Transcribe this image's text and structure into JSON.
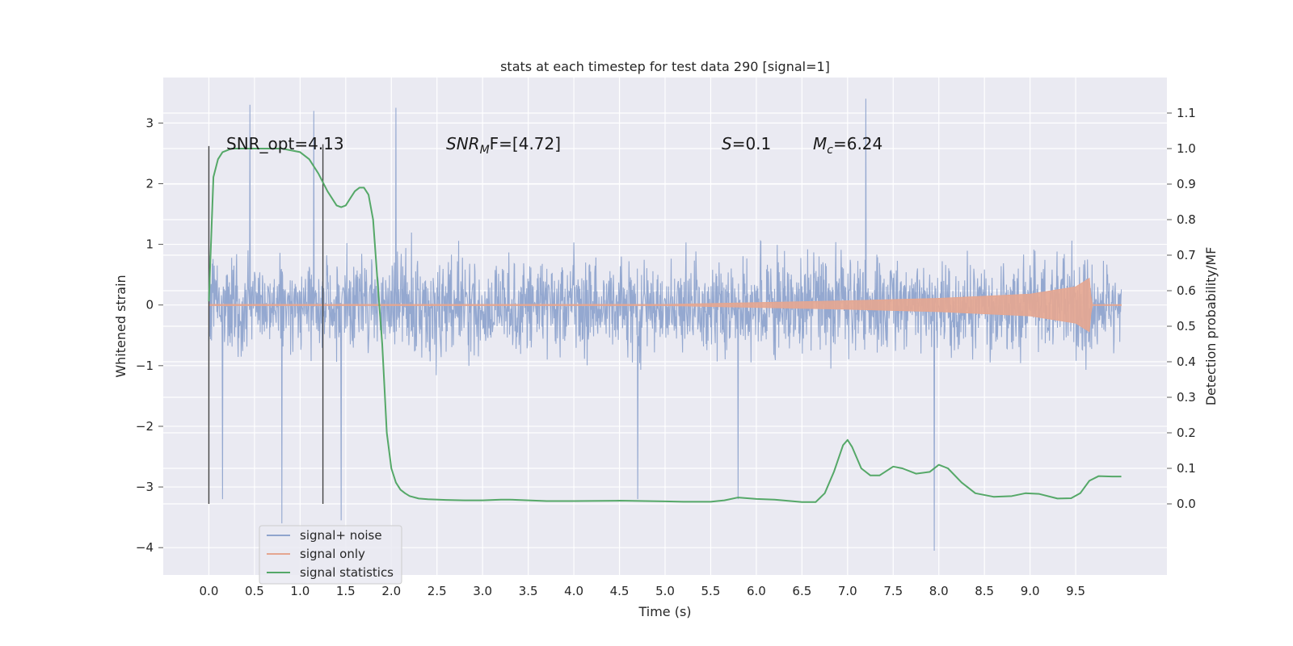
{
  "chart_data": {
    "type": "line",
    "title": "stats at each timestep for test data 290 [signal=1]",
    "xlabel": "Time (s)",
    "ylabel_left": "Whitened strain",
    "ylabel_right": "Detection probability/MF",
    "xlim": [
      -0.5,
      10.5
    ],
    "ylim_left": [
      -4.45,
      3.75
    ],
    "ylim_right": [
      -0.2,
      1.2
    ],
    "x_ticks": [
      "0.0",
      "0.5",
      "1.0",
      "1.5",
      "2.0",
      "2.5",
      "3.0",
      "3.5",
      "4.0",
      "4.5",
      "5.0",
      "5.5",
      "6.0",
      "6.5",
      "7.0",
      "7.5",
      "8.0",
      "8.5",
      "9.0",
      "9.5"
    ],
    "y_left_ticks": [
      "3",
      "2",
      "1",
      "0",
      "−1",
      "−2",
      "−3",
      "−4"
    ],
    "y_right_ticks": [
      "1.1",
      "1.0",
      "0.9",
      "0.8",
      "0.7",
      "0.6",
      "0.5",
      "0.4",
      "0.3",
      "0.2",
      "0.1",
      "0.0"
    ],
    "grid": true,
    "legend_placement": "lower-left",
    "annotations": {
      "snr_opt": "SNR_opt=4.13",
      "snr_mf_base": "SNR",
      "snr_mf_sub": "M",
      "snr_mf_rest": "F=[4.72]",
      "s_var": "S",
      "s_val": "=0.1",
      "mc_var": "M",
      "mc_sub": "c",
      "mc_val": "=6.24"
    },
    "vertical_lines_x": [
      0.0,
      1.25
    ],
    "series": [
      {
        "name": "signal+ noise",
        "color": "#8fa4cd",
        "x_range": [
          0,
          10
        ],
        "typical_band": [
          -1.5,
          1.5
        ],
        "extremes": [
          [
            0.45,
            3.3
          ],
          [
            1.15,
            3.2
          ],
          [
            2.05,
            3.25
          ],
          [
            7.2,
            3.4
          ],
          [
            0.8,
            -3.6
          ],
          [
            1.45,
            -3.55
          ],
          [
            7.95,
            -4.05
          ],
          [
            5.8,
            -3.2
          ],
          [
            0.15,
            -3.2
          ],
          [
            4.7,
            -3.2
          ]
        ]
      },
      {
        "name": "signal only",
        "color": "#e5a690",
        "x_range": [
          0,
          10
        ],
        "envelope": [
          [
            0,
            0.01
          ],
          [
            5.0,
            0.01
          ],
          [
            6.0,
            0.04
          ],
          [
            7.0,
            0.07
          ],
          [
            8.0,
            0.11
          ],
          [
            9.0,
            0.18
          ],
          [
            9.5,
            0.3
          ],
          [
            9.66,
            0.45
          ],
          [
            9.67,
            0.0
          ],
          [
            10.0,
            0.0
          ]
        ]
      },
      {
        "name": "signal statistics",
        "color": "#55a868",
        "x": [
          0.0,
          0.05,
          0.1,
          0.15,
          0.2,
          0.25,
          0.4,
          0.6,
          0.8,
          1.0,
          1.1,
          1.2,
          1.3,
          1.4,
          1.45,
          1.5,
          1.55,
          1.6,
          1.65,
          1.7,
          1.75,
          1.8,
          1.85,
          1.9,
          1.95,
          2.0,
          2.05,
          2.1,
          2.15,
          2.2,
          2.3,
          2.4,
          2.6,
          2.8,
          3.0,
          3.2,
          3.3,
          3.5,
          3.7,
          4.0,
          4.5,
          5.0,
          5.2,
          5.5,
          5.65,
          5.8,
          6.0,
          6.2,
          6.5,
          6.65,
          6.75,
          6.85,
          6.95,
          7.0,
          7.05,
          7.15,
          7.25,
          7.35,
          7.5,
          7.6,
          7.75,
          7.9,
          8.0,
          8.1,
          8.25,
          8.4,
          8.6,
          8.8,
          8.95,
          9.1,
          9.3,
          9.45,
          9.55,
          9.65,
          9.75,
          9.9,
          10.0
        ],
        "y": [
          0.57,
          0.92,
          0.97,
          0.99,
          0.995,
          1.0,
          1.0,
          1.0,
          1.0,
          0.99,
          0.97,
          0.93,
          0.88,
          0.84,
          0.835,
          0.84,
          0.86,
          0.88,
          0.89,
          0.89,
          0.87,
          0.8,
          0.62,
          0.45,
          0.2,
          0.1,
          0.06,
          0.04,
          0.03,
          0.022,
          0.015,
          0.013,
          0.011,
          0.01,
          0.01,
          0.012,
          0.012,
          0.01,
          0.008,
          0.008,
          0.009,
          0.007,
          0.006,
          0.006,
          0.01,
          0.018,
          0.014,
          0.012,
          0.005,
          0.005,
          0.03,
          0.09,
          0.165,
          0.18,
          0.16,
          0.1,
          0.08,
          0.08,
          0.105,
          0.1,
          0.085,
          0.09,
          0.11,
          0.1,
          0.06,
          0.03,
          0.02,
          0.022,
          0.03,
          0.028,
          0.015,
          0.016,
          0.03,
          0.065,
          0.078,
          0.077,
          0.077
        ]
      }
    ]
  }
}
